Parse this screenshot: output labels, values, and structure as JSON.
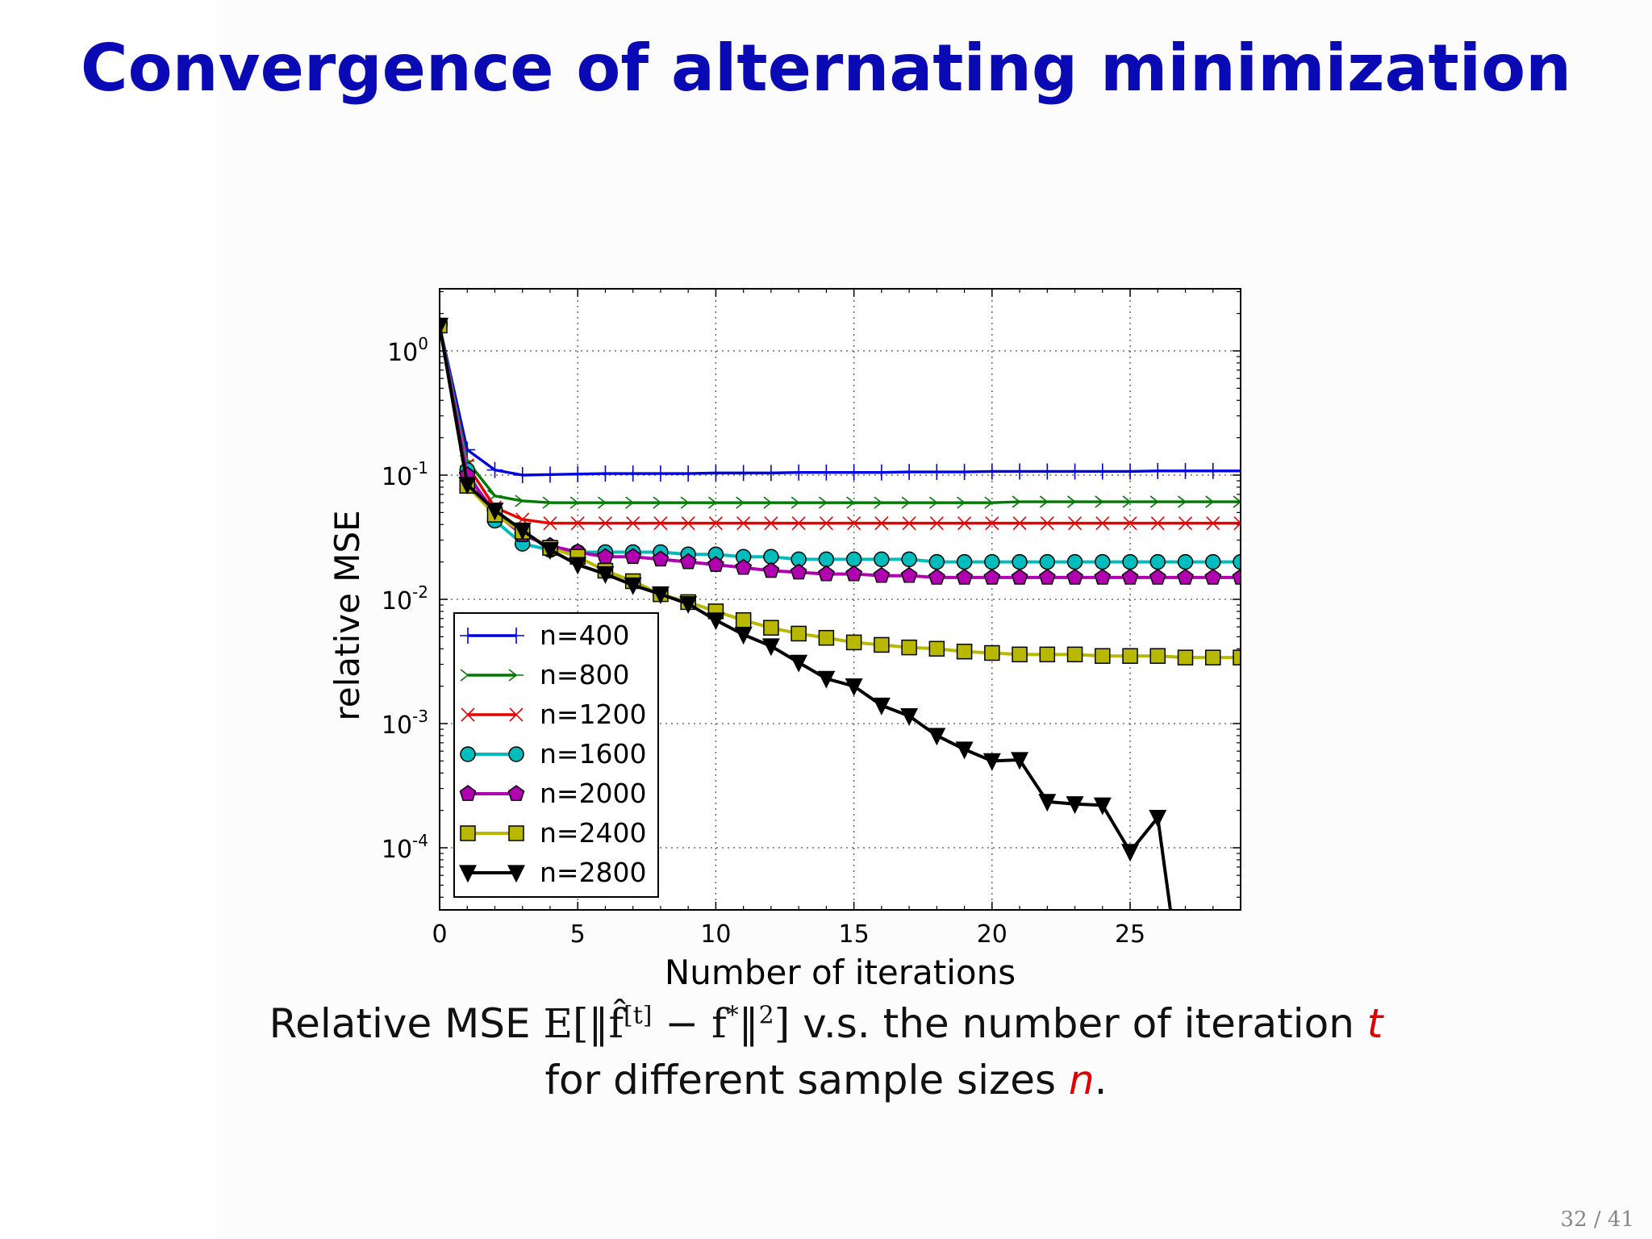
{
  "slide": {
    "title": "Convergence of alternating minimization",
    "caption_line1_pre": "Relative MSE",
    "caption_math_E": "E",
    "caption_math_expr": "[‖f̂",
    "caption_math_sup": "[t]",
    "caption_math_mid": " − f",
    "caption_math_star": "*",
    "caption_math_end": "‖",
    "caption_math_two": "2",
    "caption_math_close": "]",
    "caption_line1_post": " v.s. the number of iteration ",
    "caption_var_t": "t",
    "caption_line2_pre": "for different sample sizes ",
    "caption_var_n": "n",
    "caption_line2_post": ".",
    "page_number": "32 / 41"
  },
  "chart_data": {
    "type": "line",
    "xlabel": "Number of iterations",
    "ylabel": "relative MSE",
    "xlim": [
      0,
      29
    ],
    "ylim_log10": [
      -4.5,
      0.5
    ],
    "yscale": "log",
    "grid": true,
    "legend_position": "lower-left",
    "x_ticks": [
      0,
      5,
      10,
      15,
      20,
      25
    ],
    "y_ticks": [
      {
        "base": "10",
        "exp": "0",
        "value": 1
      },
      {
        "base": "10",
        "exp": "-1",
        "value": 0.1
      },
      {
        "base": "10",
        "exp": "-2",
        "value": 0.01
      },
      {
        "base": "10",
        "exp": "-3",
        "value": 0.001
      },
      {
        "base": "10",
        "exp": "-4",
        "value": 0.0001
      }
    ],
    "x": [
      0,
      1,
      2,
      3,
      4,
      5,
      6,
      7,
      8,
      9,
      10,
      11,
      12,
      13,
      14,
      15,
      16,
      17,
      18,
      19,
      20,
      21,
      22,
      23,
      24,
      25,
      26,
      27,
      28,
      29
    ],
    "series": [
      {
        "name": "n=400",
        "color": "#0000e0",
        "marker": "plus",
        "values": [
          1.6,
          0.16,
          0.11,
          0.1,
          0.101,
          0.102,
          0.103,
          0.103,
          0.103,
          0.103,
          0.104,
          0.104,
          0.104,
          0.105,
          0.105,
          0.105,
          0.105,
          0.106,
          0.106,
          0.106,
          0.107,
          0.107,
          0.107,
          0.107,
          0.107,
          0.107,
          0.108,
          0.108,
          0.108,
          0.108
        ]
      },
      {
        "name": "n=800",
        "color": "#007a00",
        "marker": "tri_right",
        "values": [
          1.6,
          0.13,
          0.068,
          0.062,
          0.06,
          0.06,
          0.06,
          0.06,
          0.06,
          0.06,
          0.06,
          0.06,
          0.06,
          0.06,
          0.06,
          0.06,
          0.06,
          0.06,
          0.06,
          0.06,
          0.06,
          0.061,
          0.061,
          0.061,
          0.061,
          0.061,
          0.061,
          0.061,
          0.061,
          0.061
        ]
      },
      {
        "name": "n=1200",
        "color": "#e80000",
        "marker": "x",
        "values": [
          1.6,
          0.12,
          0.055,
          0.044,
          0.041,
          0.041,
          0.041,
          0.041,
          0.041,
          0.041,
          0.041,
          0.041,
          0.041,
          0.041,
          0.041,
          0.041,
          0.041,
          0.041,
          0.041,
          0.041,
          0.041,
          0.041,
          0.041,
          0.041,
          0.041,
          0.041,
          0.041,
          0.041,
          0.041,
          0.041
        ]
      },
      {
        "name": "n=1600",
        "color": "#00bcbc",
        "marker": "circle",
        "values": [
          1.6,
          0.11,
          0.043,
          0.028,
          0.025,
          0.024,
          0.024,
          0.024,
          0.024,
          0.023,
          0.023,
          0.022,
          0.022,
          0.021,
          0.021,
          0.021,
          0.021,
          0.021,
          0.02,
          0.02,
          0.02,
          0.02,
          0.02,
          0.02,
          0.02,
          0.02,
          0.02,
          0.02,
          0.02,
          0.02
        ]
      },
      {
        "name": "n=2000",
        "color": "#b000b0",
        "marker": "pentagon",
        "values": [
          1.6,
          0.1,
          0.05,
          0.033,
          0.027,
          0.024,
          0.022,
          0.022,
          0.021,
          0.02,
          0.019,
          0.018,
          0.017,
          0.0165,
          0.016,
          0.016,
          0.0155,
          0.0155,
          0.015,
          0.015,
          0.015,
          0.015,
          0.015,
          0.015,
          0.015,
          0.015,
          0.015,
          0.015,
          0.015,
          0.015
        ]
      },
      {
        "name": "n=2400",
        "color": "#b8b800",
        "marker": "square",
        "values": [
          1.6,
          0.082,
          0.048,
          0.035,
          0.026,
          0.022,
          0.017,
          0.014,
          0.011,
          0.0095,
          0.008,
          0.0068,
          0.0059,
          0.0053,
          0.0049,
          0.0045,
          0.0043,
          0.0041,
          0.004,
          0.0038,
          0.0037,
          0.0036,
          0.0036,
          0.0036,
          0.0035,
          0.0035,
          0.0035,
          0.0034,
          0.0034,
          0.0034
        ]
      },
      {
        "name": "n=2800",
        "color": "#000000",
        "marker": "tri_down",
        "values": [
          1.6,
          0.084,
          0.052,
          0.036,
          0.025,
          0.019,
          0.016,
          0.013,
          0.011,
          0.0092,
          0.0068,
          0.0052,
          0.0042,
          0.0031,
          0.0023,
          0.002,
          0.0014,
          0.00115,
          0.0008,
          0.00062,
          0.0005,
          0.00051,
          0.000235,
          0.000225,
          0.00022,
          9.3e-05,
          0.000175,
          4.2e-06,
          null,
          null
        ]
      }
    ]
  }
}
